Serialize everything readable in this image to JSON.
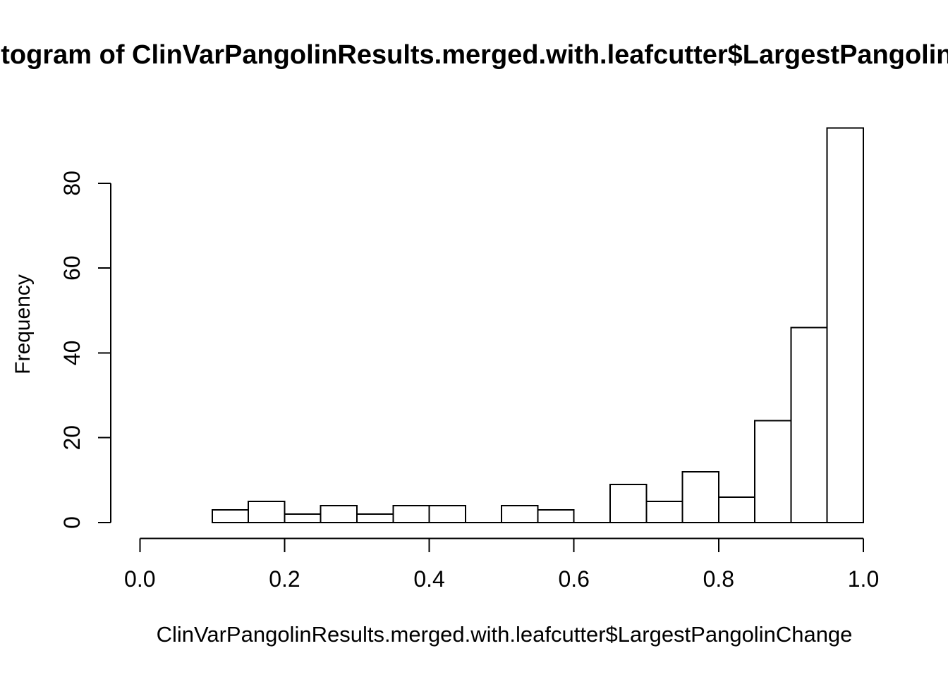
{
  "title": "Histogram of ClinVarPangolinResults.merged.with.leafcutter$LargestPangolinChange",
  "title_visible_portion": "togram of ClinVarPangolinResults.merged.with.leafcutter$LargestPangolin",
  "chart_data": {
    "type": "bar",
    "subtype": "histogram",
    "title": "Histogram of ClinVarPangolinResults.merged.with.leafcutter$LargestPangolinChange",
    "xlabel": "ClinVarPangolinResults.merged.with.leafcutter$LargestPangolinChange",
    "ylabel": "Frequency",
    "bin_start": 0.1,
    "bin_width": 0.05,
    "bin_edges": [
      0.1,
      0.15,
      0.2,
      0.25,
      0.3,
      0.35,
      0.4,
      0.45,
      0.5,
      0.55,
      0.6,
      0.65,
      0.7,
      0.75,
      0.8,
      0.85,
      0.9,
      0.95,
      1.0
    ],
    "counts": [
      3,
      5,
      2,
      4,
      2,
      4,
      4,
      0,
      4,
      3,
      0,
      9,
      5,
      12,
      6,
      24,
      46,
      93
    ],
    "x_ticks": [
      0.0,
      0.2,
      0.4,
      0.6,
      0.8,
      1.0
    ],
    "x_tick_labels": [
      "0.0",
      "0.2",
      "0.4",
      "0.6",
      "0.8",
      "1.0"
    ],
    "y_ticks": [
      0,
      20,
      40,
      60,
      80
    ],
    "y_tick_labels": [
      "0",
      "20",
      "40",
      "60",
      "80"
    ],
    "xlim": [
      0.0,
      1.0
    ],
    "ylim": [
      0,
      93
    ],
    "grid": false,
    "legend": false,
    "bar_fill": "#ffffff",
    "bar_stroke": "#000000",
    "axis_color": "#000000",
    "background": "#ffffff"
  }
}
